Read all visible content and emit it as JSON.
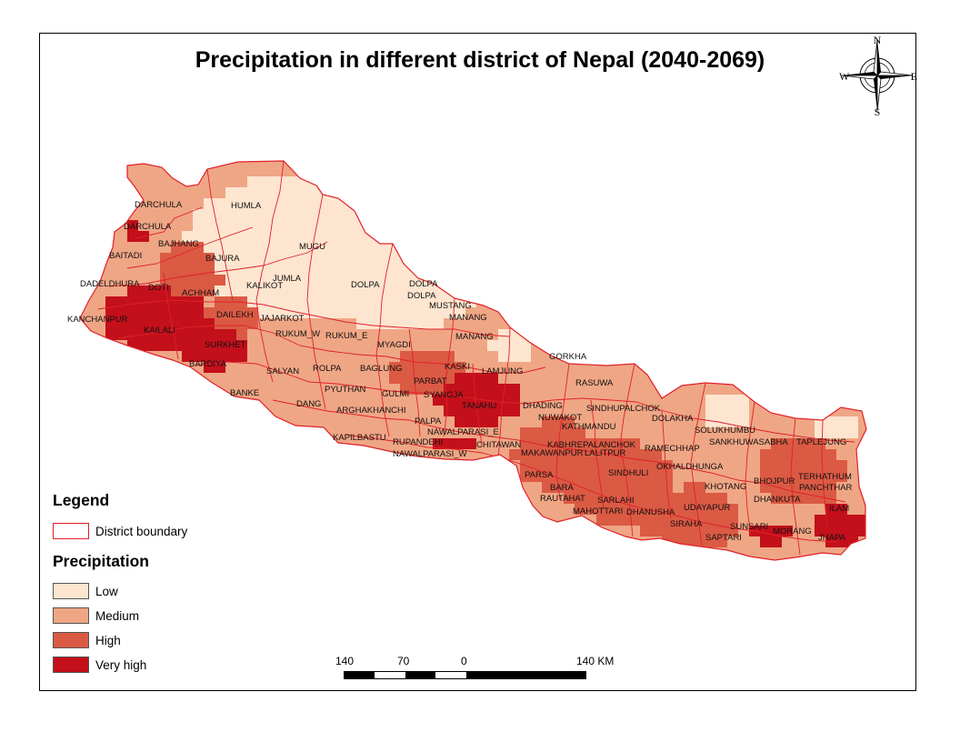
{
  "title": "Precipitation in different district of Nepal (2040-2069)",
  "legend": {
    "heading": "Legend",
    "boundary_label": "District boundary",
    "precip_heading": "Precipitation",
    "classes": [
      {
        "label": "Low",
        "color": "#fde5d0"
      },
      {
        "label": "Medium",
        "color": "#efa685"
      },
      {
        "label": "High",
        "color": "#db5a44"
      },
      {
        "label": "Very high",
        "color": "#c3101b"
      }
    ],
    "boundary_color": "#e0202a"
  },
  "scalebar": {
    "labels": [
      "140",
      "70",
      "0",
      "140 KM"
    ]
  },
  "compass": {
    "n": "N",
    "e": "E",
    "s": "S",
    "w": "W"
  },
  "districts": [
    "DARCHULA",
    "DARCHULA",
    "HUMLA",
    "BAJHANG",
    "BAITADI",
    "BAJURA",
    "MUGU",
    "DADELDHURA",
    "DOTI",
    "JUMLA",
    "DOLPA",
    "DOLPA",
    "DOLPA",
    "KALIKOT",
    "ACHHAM",
    "MUSTANG",
    "MANANG",
    "KANCHANPUR",
    "DAILEKH",
    "JAJARKOT",
    "KAILALI",
    "RUKUM_W",
    "RUKUM_E",
    "MANANG",
    "MYAGDI",
    "SURKHET",
    "GORKHA",
    "BARDIYA",
    "SALYAN",
    "ROLPA",
    "BAGLUNG",
    "KASKI",
    "LAMJUNG",
    "PARBAT",
    "RASUWA",
    "BANKE",
    "PYUTHAN",
    "GULMI",
    "SYANGJA",
    "DANG",
    "TANAHU",
    "DHADING",
    "SINDHUPALCHOK",
    "ARGHAKHANCHI",
    "NUWAKOT",
    "DOLAKHA",
    "PALPA",
    "SOLUKHUMBU",
    "KATHMANDU",
    "NAWALPARASI_E",
    "KAPILBASTU",
    "RUPANDEHI",
    "CHITAWAN",
    "SANKHUWASABHA",
    "TAPLEJUNG",
    "KABHREPALANCHOK",
    "RAMECHHAP",
    "NAWALPARASI_W",
    "MAKAWANPUR",
    "LALITPUR",
    "OKHALDHUNGA",
    "TERHATHUM",
    "SINDHULI",
    "PARSA",
    "BHOJPUR",
    "PANCHTHAR",
    "KHOTANG",
    "BARA",
    "RAUTAHAT",
    "SARLAHI",
    "DHANKUTA",
    "UDAYAPUR",
    "ILAM",
    "MAHOTTARI",
    "DHANUSHA",
    "SIRAHA",
    "SUNSARI",
    "SAPTARI",
    "MORANG",
    "JHAPA"
  ]
}
